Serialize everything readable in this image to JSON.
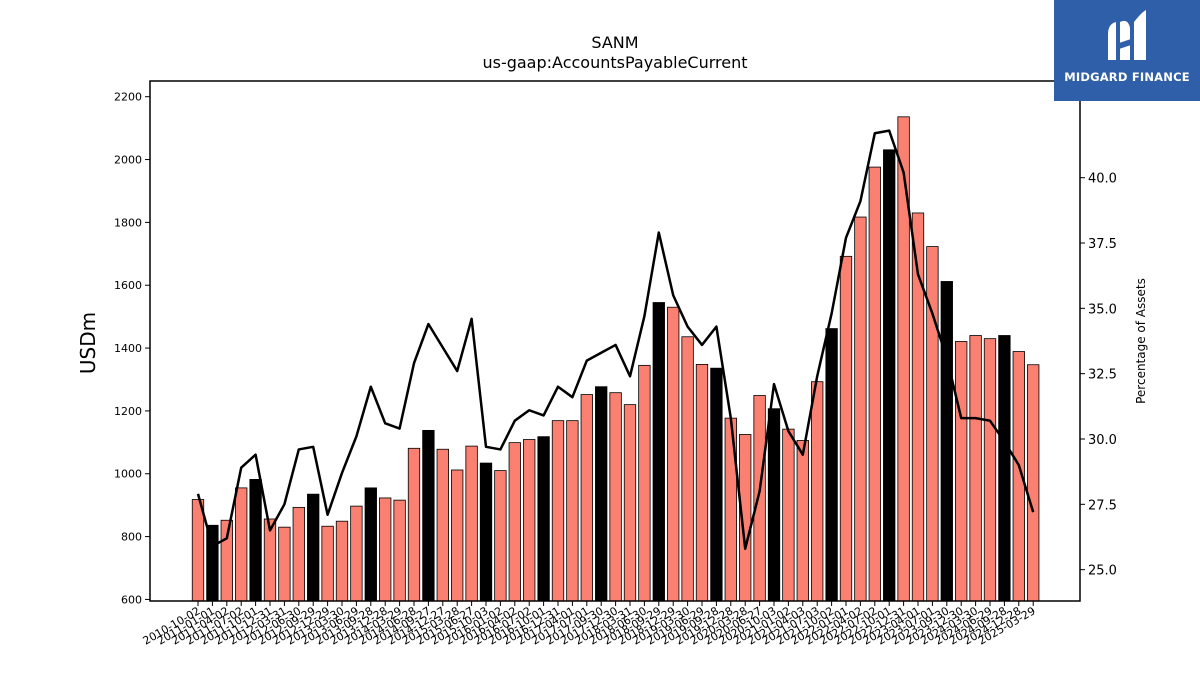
{
  "chart_data": {
    "type": "bar+line",
    "title": "SANM",
    "subtitle": "us-gaap:AccountsPayableCurrent",
    "ylabel": "USDm",
    "y2label": "Percentage of Assets",
    "ylim": [
      595,
      2250
    ],
    "y2lim": [
      23.8,
      43.7
    ],
    "yticks": [
      600,
      800,
      1000,
      1200,
      1400,
      1600,
      1800,
      2000,
      2200
    ],
    "y2ticks": [
      25.0,
      27.5,
      30.0,
      32.5,
      35.0,
      37.5,
      40.0
    ],
    "categories": [
      "2010-10-02",
      "2011-01-01",
      "2011-04-02",
      "2011-07-02",
      "2011-10-01",
      "2011-12-31",
      "2012-03-31",
      "2012-06-30",
      "2012-09-29",
      "2012-12-29",
      "2013-03-30",
      "2013-06-29",
      "2013-09-28",
      "2013-12-28",
      "2014-03-29",
      "2014-06-28",
      "2014-09-27",
      "2014-12-27",
      "2015-03-28",
      "2015-06-27",
      "2015-10-03",
      "2016-01-02",
      "2016-04-02",
      "2016-07-02",
      "2016-10-01",
      "2016-12-31",
      "2017-04-01",
      "2017-07-01",
      "2017-09-30",
      "2017-12-30",
      "2018-03-31",
      "2018-06-30",
      "2018-09-29",
      "2018-12-29",
      "2019-03-30",
      "2019-06-29",
      "2019-09-28",
      "2019-12-28",
      "2020-03-28",
      "2020-06-27",
      "2020-10-03",
      "2021-01-02",
      "2021-04-03",
      "2021-07-03",
      "2021-10-02",
      "2022-01-01",
      "2022-04-02",
      "2022-07-02",
      "2022-10-01",
      "2022-12-31",
      "2023-04-01",
      "2023-07-01",
      "2023-09-30",
      "2023-12-30",
      "2024-03-30",
      "2024-06-29",
      "2024-09-28",
      "2024-12-28",
      "2025-03-29"
    ],
    "tick_labels": [
      "2010-10-02",
      "2011-01-01",
      "2011-04-02",
      "2011-07-02",
      "2011-10-01",
      "2011-12-31",
      "2012-03-31",
      "2012-06-30",
      "2012-09-29",
      "2012-12-29",
      "2013-03-30",
      "2013-06-29",
      "2013-09-28",
      "2013-12-28",
      "2014-03-29",
      "2014-06-28",
      "2014-09-27",
      "2014-12-27",
      "2015-03-28",
      "2015-06-27",
      "2015-10-03",
      "2016-01-02",
      "2016-04-02",
      "2016-07-02",
      "2016-10-01",
      "2016-12-31",
      "2017-04-01",
      "2017-07-01",
      "2017-09-30",
      "2017-12-30",
      "2018-03-31",
      "2018-06-30",
      "2018-09-29",
      "2018-12-29",
      "2019-03-30",
      "2019-06-29",
      "2019-09-28",
      "2019-12-28",
      "2020-03-28",
      "2020-06-27",
      "2020-10-03",
      "2021-01-02",
      "2021-04-03",
      "2021-07-03",
      "2021-10-02",
      "2022-01-01",
      "2022-04-02",
      "2022-07-02",
      "2022-10-01",
      "2022-12-31",
      "2023-04-01",
      "2023-07-01",
      "2023-09-30",
      "2023-12-30",
      "2024-03-30",
      "2024-06-29",
      "2024-09-28",
      "2024-12-28",
      "2025-03-29"
    ],
    "series": [
      {
        "type": "bar",
        "values": [
          918,
          836,
          852,
          955,
          982,
          856,
          830,
          893,
          935,
          833,
          849,
          897,
          955,
          923,
          916,
          1081,
          1138,
          1078,
          1012,
          1088,
          1034,
          1010,
          1099,
          1109,
          1118,
          1169,
          1169,
          1252,
          1277,
          1258,
          1220,
          1345,
          1545,
          1530,
          1436,
          1348,
          1336,
          1177,
          1125,
          1249,
          1207,
          1142,
          1106,
          1293,
          1462,
          1692,
          1817,
          1976,
          2031,
          2136,
          1830,
          1723,
          1612,
          1421,
          1440,
          1430,
          1440,
          1389,
          1347
        ]
      },
      {
        "type": "line",
        "axis": "right",
        "values": [
          27.9,
          25.9,
          26.2,
          28.9,
          29.4,
          26.5,
          27.5,
          29.6,
          29.7,
          27.1,
          28.7,
          30.1,
          32.0,
          30.6,
          30.4,
          32.9,
          34.4,
          33.5,
          32.6,
          34.6,
          29.7,
          29.6,
          30.7,
          31.1,
          30.9,
          32.0,
          31.6,
          33.0,
          33.3,
          33.6,
          32.4,
          34.7,
          37.9,
          35.5,
          34.3,
          33.6,
          34.3,
          30.8,
          25.8,
          28.0,
          32.1,
          30.3,
          29.4,
          32.4,
          34.8,
          37.7,
          39.1,
          41.7,
          41.8,
          40.2,
          36.3,
          34.8,
          33.1,
          30.8,
          30.8,
          30.7,
          29.9,
          29.0,
          27.2
        ]
      }
    ],
    "colors": {
      "bar_normal": "#fa8072",
      "bar_highlight": "#000000",
      "line": "#000000"
    },
    "highlight_categories": [
      "2011-01-01",
      "2011-10-01",
      "2012-09-29",
      "2013-09-28",
      "2014-09-27",
      "2015-10-03",
      "2016-10-01",
      "2017-09-30",
      "2018-09-29",
      "2019-09-28",
      "2020-10-03",
      "2021-10-02",
      "2022-10-01",
      "2023-09-30",
      "2024-09-28"
    ],
    "grid": false,
    "legend": "none"
  },
  "branding": {
    "logo_text": "MIDGARD FINANCE",
    "logo_color": "#2f5fa8"
  }
}
